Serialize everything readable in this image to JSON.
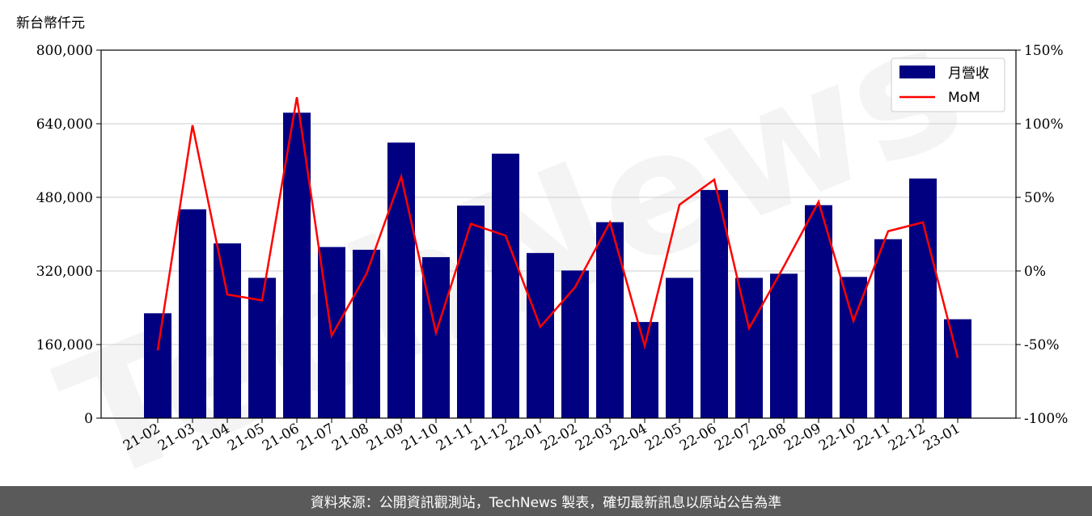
{
  "watermark": "TechNews",
  "footer_text": "資料來源：公開資訊觀測站，TechNews 製表，確切最新訊息以原站公告為準",
  "colors": {
    "bar": "#000080",
    "line": "#ff0000",
    "grid": "#cccccc",
    "footer_bg": "#5a5a5a"
  },
  "chart_data": {
    "type": "bar",
    "left_axis_unit": "新台幣仟元",
    "categories": [
      "21-02",
      "21-03",
      "21-04",
      "21-05",
      "21-06",
      "21-07",
      "21-08",
      "21-09",
      "21-10",
      "21-11",
      "21-12",
      "22-01",
      "22-02",
      "22-03",
      "22-04",
      "22-05",
      "22-06",
      "22-07",
      "22-08",
      "22-09",
      "22-10",
      "22-11",
      "22-12",
      "23-01"
    ],
    "series": [
      {
        "name": "月營收",
        "type": "bar",
        "axis": "left",
        "values": [
          228000,
          454000,
          380000,
          305000,
          664000,
          372000,
          366000,
          599000,
          350000,
          462000,
          575000,
          359000,
          321000,
          426000,
          209000,
          305000,
          496000,
          305000,
          314000,
          463000,
          307000,
          389000,
          521000,
          215000
        ]
      },
      {
        "name": "MoM",
        "type": "line",
        "axis": "right",
        "unit": "%",
        "values": [
          -54,
          99,
          -16,
          -20,
          118,
          -44,
          -2,
          64,
          -42,
          32,
          24,
          -38,
          -11,
          33,
          -51,
          45,
          62,
          -39,
          3,
          47,
          -34,
          27,
          33,
          -59
        ]
      }
    ],
    "left_axis": {
      "ylim": [
        0,
        800000
      ],
      "ticks": [
        "0",
        "160,000",
        "320,000",
        "480,000",
        "640,000",
        "800,000"
      ]
    },
    "right_axis": {
      "ylim": [
        -100,
        150
      ],
      "ticks": [
        "-100%",
        "-50%",
        "0%",
        "50%",
        "100%",
        "150%"
      ]
    },
    "grid": true,
    "legend": "top-right"
  }
}
